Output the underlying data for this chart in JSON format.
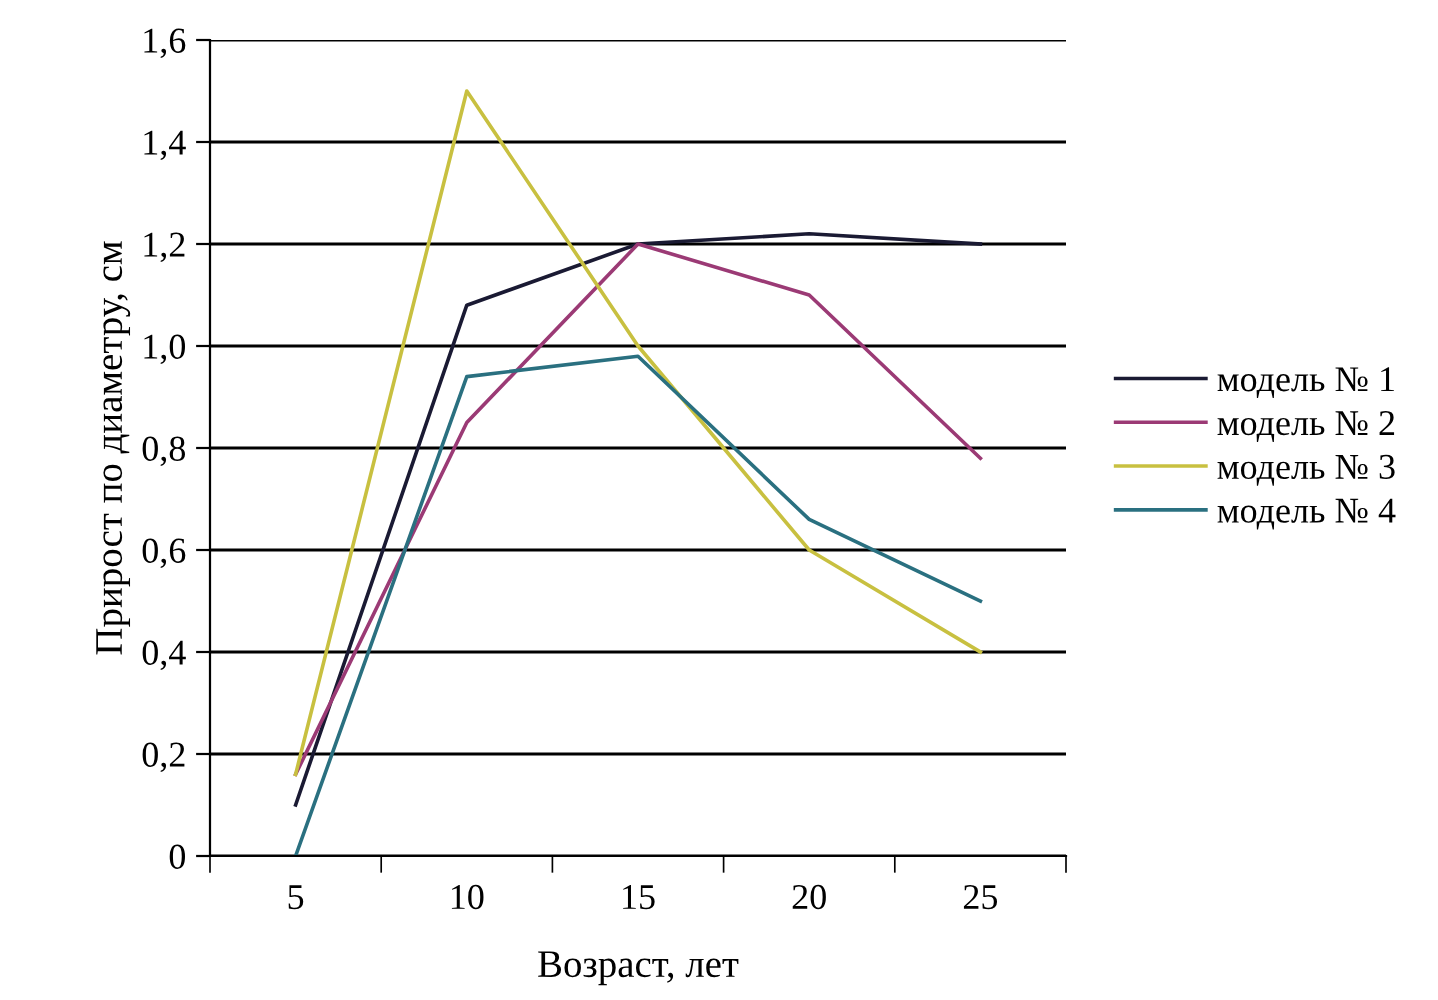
{
  "chart_data": {
    "type": "line",
    "xlabel": "Возраст, лет",
    "ylabel": "Прирост по диаметру, см",
    "categories": [
      "5",
      "10",
      "15",
      "20",
      "25"
    ],
    "series": [
      {
        "name": "модель № 1",
        "color": "#1a1a33",
        "values": [
          0.1,
          1.08,
          1.2,
          1.22,
          1.2
        ]
      },
      {
        "name": "модель № 2",
        "color": "#9b3a75",
        "values": [
          0.16,
          0.85,
          1.2,
          1.1,
          0.78
        ]
      },
      {
        "name": "модель № 3",
        "color": "#c8c040",
        "values": [
          0.16,
          1.5,
          1.0,
          0.6,
          0.4
        ]
      },
      {
        "name": "модель № 4",
        "color": "#2a7080",
        "values": [
          0.0,
          0.94,
          0.98,
          0.66,
          0.5
        ]
      }
    ],
    "ylim": [
      0,
      1.6
    ],
    "yticks": [
      0,
      {
        "value": 0.2,
        "label": "0,2"
      },
      {
        "value": 0.4,
        "label": "0,4"
      },
      {
        "value": 0.6,
        "label": "0,6"
      },
      {
        "value": 0.8,
        "label": "0,8"
      },
      {
        "value": 1.0,
        "label": "1,0"
      },
      {
        "value": 1.2,
        "label": "1,2"
      },
      {
        "value": 1.4,
        "label": "1,4"
      },
      {
        "value": 1.6,
        "label": "1,6"
      }
    ],
    "grid": "y",
    "legend": "right"
  }
}
